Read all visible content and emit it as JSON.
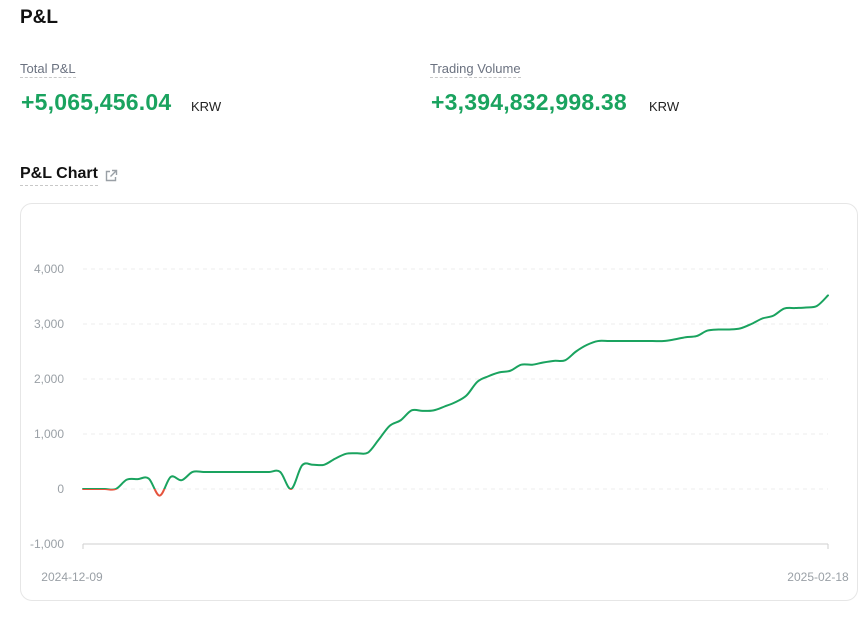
{
  "page": {
    "title": "P&L"
  },
  "stats": {
    "total_pnl": {
      "label": "Total P&L",
      "value": "+5,065,456.04",
      "unit": "KRW"
    },
    "trading_volume": {
      "label": "Trading Volume",
      "value": "+3,394,832,998.38",
      "unit": "KRW"
    }
  },
  "chart_section": {
    "title": "P&L Chart",
    "external_icon": "external-link-icon"
  },
  "colors": {
    "positive": "#1aa35f",
    "negative": "#e5533d",
    "grid": "#ececec",
    "axis_text": "#9aa0a6"
  },
  "chart_data": {
    "type": "line",
    "title": "",
    "xlabel": "",
    "ylabel": "",
    "x_start_label": "2024-12-09",
    "x_end_label": "2025-02-18",
    "ylim": [
      -1000,
      4000
    ],
    "y_ticks": [
      4000,
      3000,
      2000,
      1000,
      0,
      -1000
    ],
    "y_tick_labels": [
      "4,000",
      "3,000",
      "2,000",
      "1,000",
      "0",
      "-1,000"
    ],
    "grid": true,
    "series": [
      {
        "values": [
          0,
          0,
          0,
          0,
          170,
          180,
          190,
          -120,
          220,
          160,
          310,
          310,
          310,
          310,
          310,
          310,
          310,
          310,
          310,
          0,
          430,
          440,
          440,
          550,
          640,
          650,
          660,
          900,
          1150,
          1250,
          1430,
          1420,
          1430,
          1500,
          1580,
          1700,
          1950,
          2050,
          2120,
          2150,
          2260,
          2260,
          2300,
          2330,
          2340,
          2500,
          2620,
          2690,
          2690,
          2690,
          2690,
          2690,
          2690,
          2690,
          2720,
          2760,
          2780,
          2880,
          2900,
          2900,
          2920,
          3000,
          3100,
          3150,
          3280,
          3290,
          3300,
          3330,
          3520
        ]
      }
    ]
  }
}
